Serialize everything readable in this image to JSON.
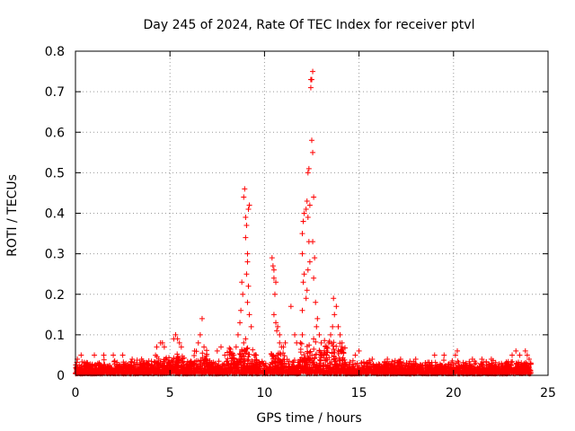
{
  "chart_data": {
    "type": "scatter",
    "title": "Day 245 of 2024, Rate Of TEC Index for receiver ptvl",
    "xlabel": "GPS time / hours",
    "ylabel": "ROTI / TECUs",
    "xlim": [
      0,
      25
    ],
    "ylim": [
      0,
      0.8
    ],
    "xticks": [
      0,
      5,
      10,
      15,
      20,
      25
    ],
    "xtick_labels": [
      "0",
      "5",
      "10",
      "15",
      "20",
      "25"
    ],
    "yticks": [
      0,
      0.1,
      0.2,
      0.3,
      0.4,
      0.5,
      0.6,
      0.7,
      0.8
    ],
    "ytick_labels": [
      "0",
      "0.1",
      "0.2",
      "0.3",
      "0.4",
      "0.5",
      "0.6",
      "0.7",
      "0.8"
    ],
    "grid": true,
    "marker": "+",
    "color": "#ff0000",
    "series": [
      {
        "name": "ROTI",
        "points": [
          [
            8.5,
            0.07
          ],
          [
            8.6,
            0.1
          ],
          [
            8.7,
            0.13
          ],
          [
            8.75,
            0.16
          ],
          [
            8.8,
            0.23
          ],
          [
            8.85,
            0.2
          ],
          [
            8.9,
            0.44
          ],
          [
            8.95,
            0.46
          ],
          [
            9.0,
            0.39
          ],
          [
            9.0,
            0.34
          ],
          [
            9.05,
            0.37
          ],
          [
            9.1,
            0.3
          ],
          [
            9.1,
            0.28
          ],
          [
            9.15,
            0.41
          ],
          [
            9.2,
            0.42
          ],
          [
            9.15,
            0.22
          ],
          [
            9.1,
            0.18
          ],
          [
            9.05,
            0.25
          ],
          [
            9.2,
            0.15
          ],
          [
            9.3,
            0.12
          ],
          [
            9.0,
            0.09
          ],
          [
            8.9,
            0.08
          ],
          [
            10.4,
            0.29
          ],
          [
            10.45,
            0.27
          ],
          [
            10.5,
            0.26
          ],
          [
            10.5,
            0.24
          ],
          [
            10.55,
            0.2
          ],
          [
            10.6,
            0.23
          ],
          [
            10.5,
            0.15
          ],
          [
            10.6,
            0.13
          ],
          [
            10.7,
            0.12
          ],
          [
            10.65,
            0.11
          ],
          [
            10.8,
            0.1
          ],
          [
            10.8,
            0.08
          ],
          [
            10.9,
            0.07
          ],
          [
            11.4,
            0.17
          ],
          [
            11.6,
            0.1
          ],
          [
            11.7,
            0.08
          ],
          [
            11.9,
            0.08
          ],
          [
            12.0,
            0.1
          ],
          [
            12.0,
            0.16
          ],
          [
            12.05,
            0.23
          ],
          [
            12.1,
            0.25
          ],
          [
            12.0,
            0.3
          ],
          [
            12.0,
            0.35
          ],
          [
            12.05,
            0.38
          ],
          [
            12.1,
            0.4
          ],
          [
            12.2,
            0.41
          ],
          [
            12.25,
            0.43
          ],
          [
            12.3,
            0.5
          ],
          [
            12.35,
            0.51
          ],
          [
            12.4,
            0.42
          ],
          [
            12.3,
            0.39
          ],
          [
            12.35,
            0.33
          ],
          [
            12.4,
            0.28
          ],
          [
            12.3,
            0.26
          ],
          [
            12.25,
            0.21
          ],
          [
            12.2,
            0.19
          ],
          [
            12.45,
            0.71
          ],
          [
            12.5,
            0.73
          ],
          [
            12.55,
            0.75
          ],
          [
            12.45,
            0.73
          ],
          [
            12.5,
            0.58
          ],
          [
            12.55,
            0.55
          ],
          [
            12.6,
            0.44
          ],
          [
            12.55,
            0.33
          ],
          [
            12.65,
            0.29
          ],
          [
            12.6,
            0.24
          ],
          [
            12.7,
            0.18
          ],
          [
            12.8,
            0.14
          ],
          [
            12.75,
            0.12
          ],
          [
            12.9,
            0.1
          ],
          [
            13.0,
            0.08
          ],
          [
            12.6,
            0.09
          ],
          [
            13.5,
            0.1
          ],
          [
            13.6,
            0.12
          ],
          [
            13.7,
            0.15
          ],
          [
            13.8,
            0.17
          ],
          [
            13.65,
            0.19
          ],
          [
            13.9,
            0.12
          ],
          [
            14.0,
            0.1
          ],
          [
            14.1,
            0.08
          ],
          [
            13.4,
            0.08
          ],
          [
            13.3,
            0.07
          ],
          [
            4.3,
            0.07
          ],
          [
            4.5,
            0.08
          ],
          [
            4.6,
            0.08
          ],
          [
            4.7,
            0.07
          ],
          [
            5.2,
            0.09
          ],
          [
            5.3,
            0.1
          ],
          [
            5.4,
            0.09
          ],
          [
            5.5,
            0.08
          ],
          [
            5.6,
            0.07
          ],
          [
            6.3,
            0.06
          ],
          [
            6.5,
            0.08
          ],
          [
            6.6,
            0.1
          ],
          [
            6.7,
            0.14
          ],
          [
            6.8,
            0.07
          ],
          [
            7.5,
            0.06
          ],
          [
            7.7,
            0.07
          ],
          [
            7.9,
            0.05
          ],
          [
            11.0,
            0.07
          ],
          [
            11.1,
            0.08
          ],
          [
            14.8,
            0.05
          ],
          [
            15.0,
            0.06
          ],
          [
            15.7,
            0.04
          ],
          [
            16.5,
            0.04
          ],
          [
            17.2,
            0.04
          ],
          [
            18.0,
            0.04
          ],
          [
            19.0,
            0.05
          ],
          [
            19.5,
            0.05
          ],
          [
            20.1,
            0.05
          ],
          [
            20.2,
            0.06
          ],
          [
            21.0,
            0.04
          ],
          [
            21.5,
            0.04
          ],
          [
            22.0,
            0.04
          ],
          [
            23.1,
            0.05
          ],
          [
            23.3,
            0.06
          ],
          [
            23.5,
            0.05
          ],
          [
            23.8,
            0.06
          ],
          [
            23.9,
            0.05
          ],
          [
            24.0,
            0.04
          ],
          [
            1.0,
            0.05
          ],
          [
            1.5,
            0.05
          ],
          [
            2.0,
            0.05
          ],
          [
            2.5,
            0.05
          ],
          [
            3.0,
            0.04
          ],
          [
            3.5,
            0.04
          ],
          [
            0.3,
            0.05
          ],
          [
            0.1,
            0.04
          ]
        ]
      }
    ]
  }
}
